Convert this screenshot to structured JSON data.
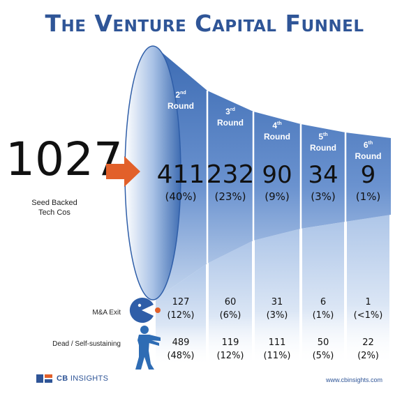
{
  "title": "The Venture Capital Funnel",
  "seed": {
    "value": "1027",
    "label_line1": "Seed Backed",
    "label_line2": "Tech Cos"
  },
  "colors": {
    "funnel_dark": "#2f5ea8",
    "funnel_light": "#9bbbe0",
    "arrow": "#e2602a",
    "title": "#2f5597",
    "pacman": "#2f5ea8",
    "pacman_dot": "#e2602a",
    "zombie": "#2e6cb4"
  },
  "rounds": [
    {
      "num": "2",
      "sup": "nd",
      "label": "Round",
      "count": "411",
      "pct": "(40%)",
      "exit_count": "127",
      "exit_pct": "(12%)",
      "dead_count": "489",
      "dead_pct": "(48%)"
    },
    {
      "num": "3",
      "sup": "rd",
      "label": "Round",
      "count": "232",
      "pct": "(23%)",
      "exit_count": "60",
      "exit_pct": "(6%)",
      "dead_count": "119",
      "dead_pct": "(12%)"
    },
    {
      "num": "4",
      "sup": "th",
      "label": "Round",
      "count": "90",
      "pct": "(9%)",
      "exit_count": "31",
      "exit_pct": "(3%)",
      "dead_count": "111",
      "dead_pct": "(11%)"
    },
    {
      "num": "5",
      "sup": "th",
      "label": "Round",
      "count": "34",
      "pct": "(3%)",
      "exit_count": "6",
      "exit_pct": "(1%)",
      "dead_count": "50",
      "dead_pct": "(5%)"
    },
    {
      "num": "6",
      "sup": "th",
      "label": "Round",
      "count": "9",
      "pct": "(1%)",
      "exit_count": "1",
      "exit_pct": "(<1%)",
      "dead_count": "22",
      "dead_pct": "(2%)"
    }
  ],
  "rows": {
    "exit_label": "M&A Exit",
    "dead_label": "Dead / Self-sustaining"
  },
  "icons": {
    "exit": "pacman-icon",
    "dead": "zombie-icon"
  },
  "footer": {
    "logo_strong": "CB",
    "logo_rest": "INSIGHTS",
    "website": "www.cbinsights.com"
  }
}
